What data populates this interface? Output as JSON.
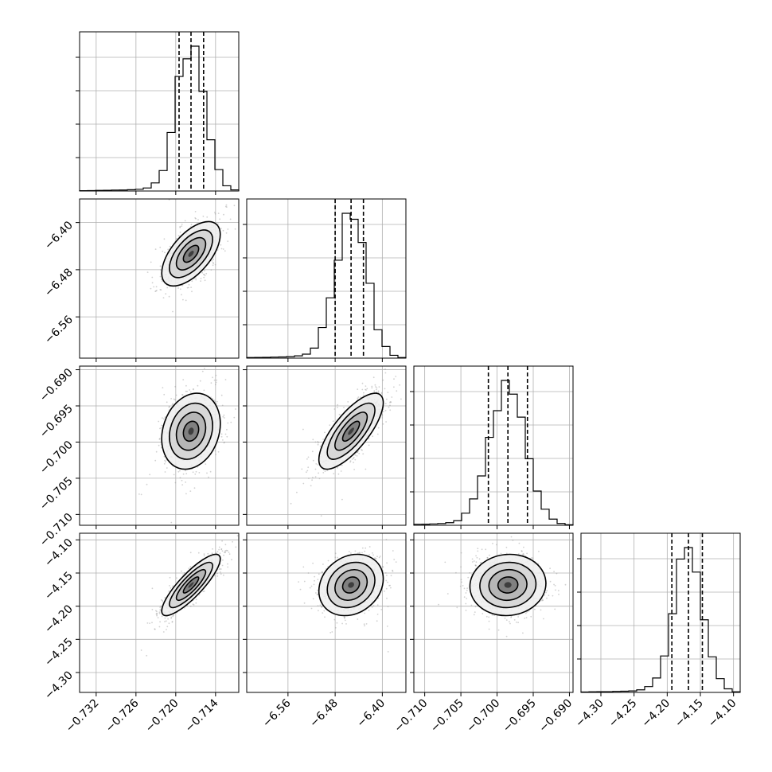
{
  "chart_data": {
    "type": "corner",
    "title": "",
    "params": [
      {
        "xlabel": "",
        "range": [
          -0.7345,
          -0.7105
        ],
        "ticks": [
          -0.732,
          -0.726,
          -0.72,
          -0.714
        ],
        "tick_labels": [
          "−0.732",
          "−0.726",
          "−0.720",
          "−0.714"
        ],
        "quantiles": [
          -0.7195,
          -0.7177,
          -0.7158
        ],
        "median": -0.7177,
        "sd": 0.0021
      },
      {
        "xlabel": "",
        "range": [
          -6.63,
          -6.36
        ],
        "ticks": [
          -6.56,
          -6.48,
          -6.4
        ],
        "tick_labels": [
          "−6.56",
          "−6.48",
          "−6.40"
        ],
        "quantiles": [
          -6.48,
          -6.453,
          -6.432
        ],
        "median": -6.453,
        "sd": 0.026
      },
      {
        "xlabel": "",
        "range": [
          -0.7115,
          -0.6895
        ],
        "ticks": [
          -0.71,
          -0.705,
          -0.7,
          -0.695,
          -0.69
        ],
        "tick_labels": [
          "−0.710",
          "−0.705",
          "−0.700",
          "−0.695",
          "−0.690"
        ],
        "quantiles": [
          -0.7012,
          -0.6985,
          -0.6958
        ],
        "median": -0.6985,
        "sd": 0.0025
      },
      {
        "xlabel": "",
        "range": [
          -4.33,
          -4.09
        ],
        "ticks": [
          -4.3,
          -4.25,
          -4.2,
          -4.15,
          -4.1
        ],
        "tick_labels": [
          "−4.30",
          "−4.25",
          "−4.20",
          "−4.15",
          "−4.10"
        ],
        "quantiles": [
          -4.193,
          -4.168,
          -4.147
        ],
        "median": -4.168,
        "sd": 0.022
      }
    ],
    "correlations": [
      [
        1,
        0.6,
        0.2,
        0.85
      ],
      [
        0.6,
        1,
        0.75,
        0.2
      ],
      [
        0.2,
        0.75,
        1,
        0.05
      ],
      [
        0.85,
        0.2,
        0.05,
        1
      ]
    ],
    "histogram_bins": 20,
    "contour_levels": [
      "0.5-sigma",
      "1-sigma",
      "1.5-sigma",
      "2-sigma"
    ],
    "colors": {
      "line": "#000000",
      "grid": "#b0b0b0",
      "points": "#9a9a9a",
      "background": "#ffffff"
    }
  }
}
